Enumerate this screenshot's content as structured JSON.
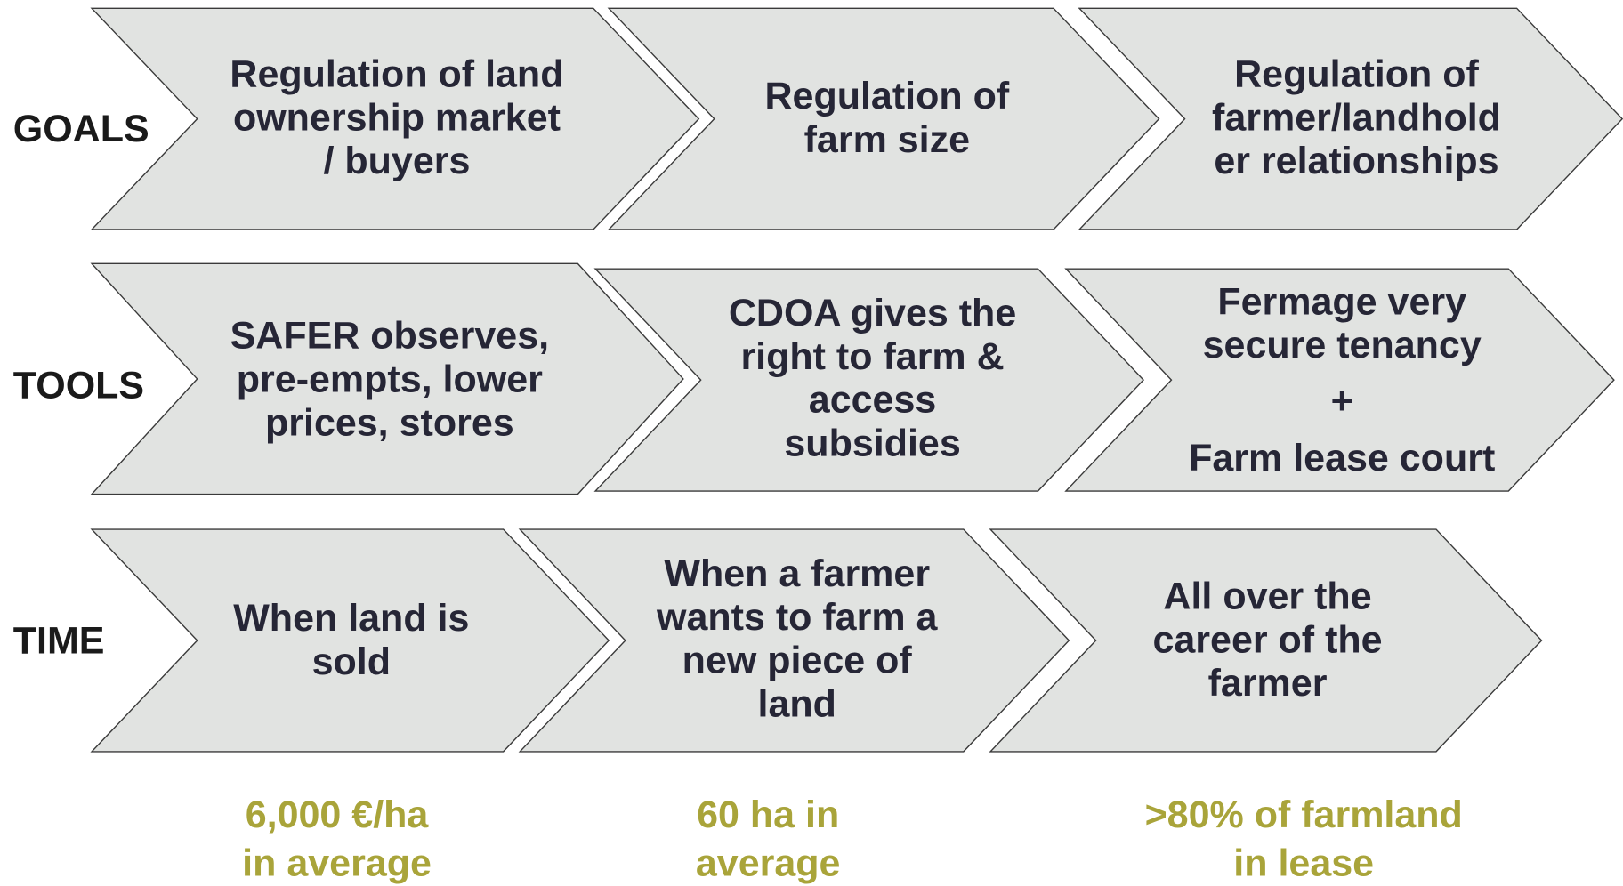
{
  "rows": [
    {
      "label": "GOALS",
      "steps": [
        {
          "lines": [
            "Regulation of land",
            "ownership market",
            "/ buyers"
          ]
        },
        {
          "lines": [
            "Regulation of",
            "farm size"
          ]
        },
        {
          "lines": [
            "Regulation of",
            "farmer/landhold",
            "er relationships"
          ]
        }
      ]
    },
    {
      "label": "TOOLS",
      "steps": [
        {
          "lines": [
            "SAFER observes,",
            "pre-empts, lower",
            "prices, stores"
          ]
        },
        {
          "lines": [
            "CDOA gives the",
            "right to farm &",
            "access",
            "subsidies"
          ]
        },
        {
          "lines": [
            "Fermage very",
            "secure tenancy",
            "+",
            "Farm lease court"
          ]
        }
      ]
    },
    {
      "label": "TIME",
      "steps": [
        {
          "lines": [
            "When land is",
            "sold"
          ]
        },
        {
          "lines": [
            "When a farmer",
            "wants to farm a",
            "new piece of",
            "land"
          ]
        },
        {
          "lines": [
            "All over the",
            "career of the",
            "farmer"
          ]
        }
      ]
    }
  ],
  "footer": [
    {
      "lines": [
        "6,000 €/ha",
        "in average"
      ]
    },
    {
      "lines": [
        "60 ha in",
        "average"
      ]
    },
    {
      "lines": [
        ">80% of farmland",
        "in lease"
      ]
    }
  ]
}
